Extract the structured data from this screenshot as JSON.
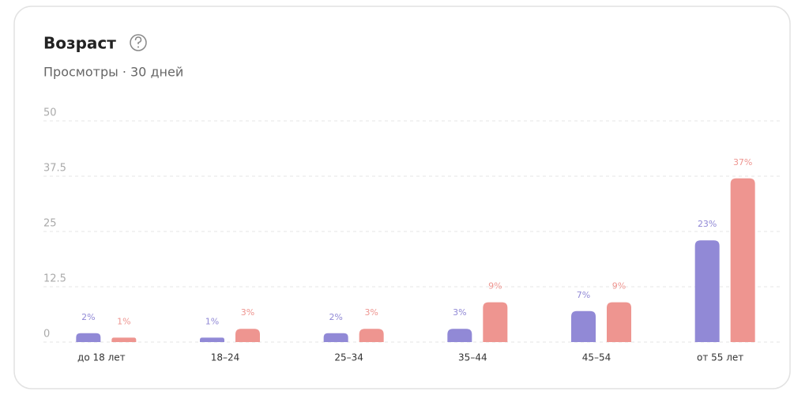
{
  "chart_data": {
    "type": "bar",
    "title": "Возраст",
    "subtitle": "Просмотры · 30 дней",
    "categories": [
      "до 18 лет",
      "18–24",
      "25–34",
      "35–44",
      "45–54",
      "от 55 лет"
    ],
    "series": [
      {
        "color": "#9189d6",
        "values": [
          2,
          1,
          2,
          3,
          7,
          23
        ],
        "value_labels": [
          "2%",
          "1%",
          "2%",
          "3%",
          "7%",
          "23%"
        ]
      },
      {
        "color": "#ee9590",
        "values": [
          1,
          3,
          3,
          9,
          9,
          37
        ],
        "value_labels": [
          "1%",
          "3%",
          "3%",
          "9%",
          "9%",
          "37%"
        ]
      }
    ],
    "ylim": [
      0,
      50
    ],
    "yticks": [
      0,
      12.5,
      25,
      37.5,
      50
    ],
    "grid": true
  }
}
